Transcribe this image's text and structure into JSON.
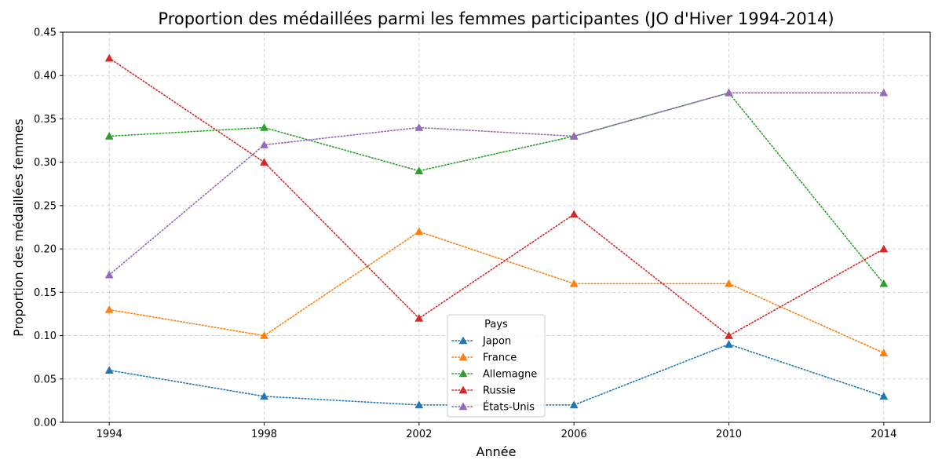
{
  "chart_data": {
    "type": "line",
    "title": "Proportion des médaillées parmi les femmes participantes (JO d'Hiver 1994-2014)",
    "xlabel": "Année",
    "ylabel": "Proportion des médaillées femmes",
    "x": [
      1994,
      1998,
      2002,
      2006,
      2010,
      2014
    ],
    "x_ticks": [
      "1994",
      "1998",
      "2002",
      "2006",
      "2010",
      "2014"
    ],
    "xlim": [
      1992.8,
      2015.2
    ],
    "ylim": [
      0,
      0.45
    ],
    "y_ticks": [
      "0.00",
      "0.05",
      "0.10",
      "0.15",
      "0.20",
      "0.25",
      "0.30",
      "0.35",
      "0.40",
      "0.45"
    ],
    "grid": true,
    "line_style": "dotted",
    "marker": "triangle",
    "legend": {
      "title": "Pays",
      "placement": "bottom-center"
    },
    "series": [
      {
        "name": "Japon",
        "color": "#1f77b4",
        "values": [
          0.06,
          0.03,
          0.02,
          0.02,
          0.09,
          0.03
        ]
      },
      {
        "name": "France",
        "color": "#ff7f0e",
        "values": [
          0.13,
          0.1,
          0.22,
          0.16,
          0.16,
          0.08
        ]
      },
      {
        "name": "Allemagne",
        "color": "#2ca02c",
        "values": [
          0.33,
          0.34,
          0.29,
          0.33,
          0.38,
          0.16
        ]
      },
      {
        "name": "Russie",
        "color": "#d62728",
        "values": [
          0.42,
          0.3,
          0.12,
          0.24,
          0.1,
          0.2
        ]
      },
      {
        "name": "États-Unis",
        "color": "#9467bd",
        "values": [
          0.17,
          0.32,
          0.34,
          0.33,
          0.38,
          0.38
        ]
      }
    ]
  }
}
